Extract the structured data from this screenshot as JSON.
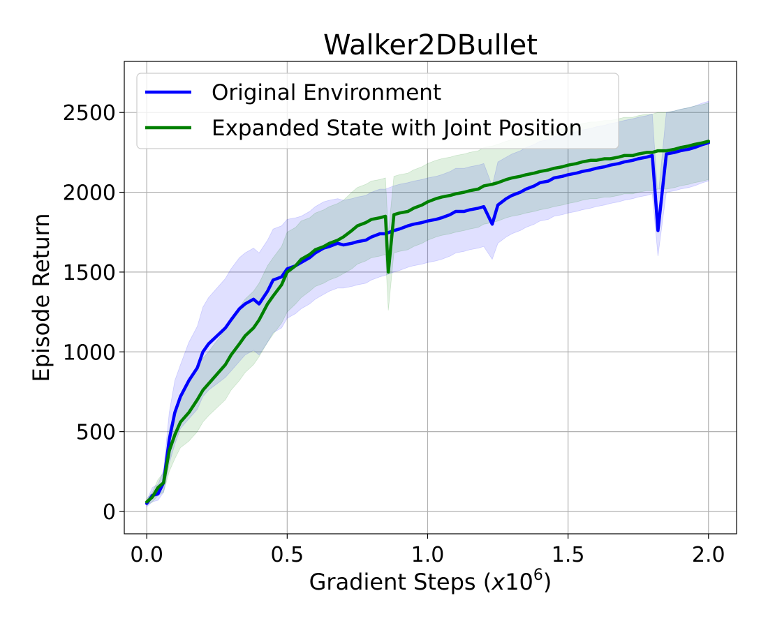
{
  "chart_data": {
    "type": "line",
    "title": "Walker2DBullet",
    "xlabel": "Gradient Steps (x10⁶)",
    "xlabel_parts": {
      "main": "Gradient Steps (",
      "var": "x",
      "base": "10",
      "exp": "6",
      "close": ")"
    },
    "ylabel": "Episode Return",
    "xlim": [
      -0.08,
      2.1
    ],
    "ylim": [
      -140,
      2820
    ],
    "xticks": [
      0.0,
      0.5,
      1.0,
      1.5,
      2.0
    ],
    "xtick_labels": [
      "0.0",
      "0.5",
      "1.0",
      "1.5",
      "2.0"
    ],
    "yticks": [
      0,
      500,
      1000,
      1500,
      2000,
      2500
    ],
    "ytick_labels": [
      "0",
      "500",
      "1000",
      "1500",
      "2000",
      "2500"
    ],
    "grid": true,
    "legend_position": "top-left",
    "series": [
      {
        "name": "Original Environment",
        "color": "#0000ff",
        "band_color": "#0000ff",
        "x": [
          0.0,
          0.02,
          0.04,
          0.06,
          0.08,
          0.1,
          0.12,
          0.15,
          0.18,
          0.2,
          0.22,
          0.25,
          0.28,
          0.3,
          0.33,
          0.35,
          0.38,
          0.4,
          0.43,
          0.45,
          0.48,
          0.5,
          0.53,
          0.55,
          0.58,
          0.6,
          0.63,
          0.65,
          0.68,
          0.7,
          0.73,
          0.75,
          0.78,
          0.8,
          0.83,
          0.85,
          0.88,
          0.9,
          0.93,
          0.95,
          0.98,
          1.0,
          1.03,
          1.05,
          1.08,
          1.1,
          1.13,
          1.15,
          1.18,
          1.2,
          1.23,
          1.25,
          1.28,
          1.3,
          1.33,
          1.35,
          1.38,
          1.4,
          1.43,
          1.45,
          1.48,
          1.5,
          1.53,
          1.55,
          1.58,
          1.6,
          1.63,
          1.65,
          1.68,
          1.7,
          1.73,
          1.75,
          1.78,
          1.8,
          1.82,
          1.85,
          1.88,
          1.9,
          1.93,
          1.95,
          1.98,
          2.0
        ],
        "y": [
          50,
          100,
          110,
          180,
          450,
          620,
          720,
          820,
          900,
          1000,
          1050,
          1100,
          1150,
          1200,
          1270,
          1300,
          1330,
          1300,
          1380,
          1450,
          1470,
          1520,
          1540,
          1560,
          1590,
          1620,
          1650,
          1660,
          1680,
          1670,
          1680,
          1690,
          1700,
          1720,
          1740,
          1740,
          1760,
          1770,
          1790,
          1800,
          1810,
          1820,
          1830,
          1840,
          1860,
          1880,
          1880,
          1890,
          1900,
          1910,
          1800,
          1920,
          1960,
          1980,
          2000,
          2020,
          2040,
          2060,
          2070,
          2090,
          2100,
          2110,
          2120,
          2130,
          2140,
          2150,
          2160,
          2170,
          2180,
          2190,
          2200,
          2210,
          2220,
          2230,
          1760,
          2240,
          2250,
          2260,
          2270,
          2280,
          2300,
          2310
        ],
        "lower": [
          30,
          60,
          70,
          120,
          300,
          420,
          520,
          580,
          640,
          720,
          760,
          800,
          840,
          880,
          940,
          980,
          1010,
          980,
          1060,
          1120,
          1150,
          1210,
          1240,
          1270,
          1300,
          1330,
          1360,
          1380,
          1400,
          1400,
          1410,
          1420,
          1430,
          1450,
          1470,
          1480,
          1500,
          1510,
          1530,
          1540,
          1550,
          1560,
          1570,
          1580,
          1600,
          1620,
          1630,
          1640,
          1650,
          1660,
          1580,
          1680,
          1720,
          1740,
          1760,
          1780,
          1800,
          1820,
          1830,
          1850,
          1860,
          1870,
          1880,
          1890,
          1900,
          1910,
          1920,
          1930,
          1940,
          1950,
          1960,
          1970,
          1980,
          1990,
          1600,
          2000,
          2010,
          2020,
          2030,
          2040,
          2060,
          2070
        ],
        "upper": [
          70,
          150,
          170,
          260,
          620,
          820,
          920,
          1060,
          1160,
          1280,
          1340,
          1400,
          1460,
          1520,
          1590,
          1620,
          1650,
          1620,
          1700,
          1770,
          1790,
          1830,
          1840,
          1850,
          1880,
          1910,
          1940,
          1950,
          1960,
          1950,
          1960,
          1970,
          1980,
          2000,
          2020,
          2020,
          2040,
          2050,
          2060,
          2070,
          2080,
          2090,
          2100,
          2110,
          2130,
          2150,
          2150,
          2160,
          2170,
          2180,
          2040,
          2190,
          2220,
          2240,
          2260,
          2280,
          2300,
          2320,
          2330,
          2350,
          2360,
          2370,
          2380,
          2390,
          2400,
          2410,
          2420,
          2430,
          2440,
          2450,
          2460,
          2470,
          2480,
          2490,
          1960,
          2500,
          2510,
          2520,
          2530,
          2540,
          2560,
          2570
        ]
      },
      {
        "name": "Expanded State with Joint Position",
        "color": "#008000",
        "band_color": "#008000",
        "x": [
          0.0,
          0.02,
          0.04,
          0.06,
          0.08,
          0.1,
          0.12,
          0.15,
          0.18,
          0.2,
          0.22,
          0.25,
          0.28,
          0.3,
          0.33,
          0.35,
          0.38,
          0.4,
          0.43,
          0.45,
          0.48,
          0.5,
          0.53,
          0.55,
          0.58,
          0.6,
          0.63,
          0.65,
          0.68,
          0.7,
          0.73,
          0.75,
          0.78,
          0.8,
          0.83,
          0.85,
          0.86,
          0.88,
          0.9,
          0.93,
          0.95,
          0.98,
          1.0,
          1.03,
          1.05,
          1.08,
          1.1,
          1.13,
          1.15,
          1.18,
          1.2,
          1.23,
          1.25,
          1.28,
          1.3,
          1.33,
          1.35,
          1.38,
          1.4,
          1.43,
          1.45,
          1.48,
          1.5,
          1.53,
          1.55,
          1.58,
          1.6,
          1.63,
          1.65,
          1.68,
          1.7,
          1.73,
          1.75,
          1.78,
          1.8,
          1.82,
          1.85,
          1.88,
          1.9,
          1.93,
          1.95,
          1.98,
          2.0
        ],
        "y": [
          60,
          90,
          150,
          180,
          380,
          480,
          560,
          620,
          700,
          760,
          800,
          860,
          920,
          980,
          1050,
          1100,
          1150,
          1200,
          1300,
          1350,
          1420,
          1500,
          1540,
          1580,
          1610,
          1640,
          1660,
          1680,
          1700,
          1720,
          1760,
          1790,
          1810,
          1830,
          1840,
          1850,
          1500,
          1860,
          1870,
          1880,
          1900,
          1920,
          1940,
          1960,
          1970,
          1980,
          1990,
          2000,
          2010,
          2020,
          2040,
          2050,
          2060,
          2080,
          2090,
          2100,
          2110,
          2120,
          2130,
          2140,
          2150,
          2160,
          2170,
          2180,
          2190,
          2200,
          2200,
          2210,
          2210,
          2220,
          2230,
          2230,
          2240,
          2250,
          2250,
          2260,
          2260,
          2270,
          2280,
          2290,
          2300,
          2310,
          2320
        ],
        "lower": [
          40,
          60,
          100,
          120,
          250,
          330,
          400,
          440,
          500,
          560,
          600,
          650,
          700,
          760,
          820,
          870,
          920,
          970,
          1060,
          1110,
          1180,
          1250,
          1300,
          1340,
          1380,
          1410,
          1430,
          1450,
          1470,
          1490,
          1520,
          1550,
          1570,
          1590,
          1600,
          1610,
          1260,
          1620,
          1630,
          1640,
          1660,
          1680,
          1700,
          1720,
          1730,
          1740,
          1750,
          1760,
          1770,
          1780,
          1800,
          1810,
          1820,
          1840,
          1850,
          1860,
          1870,
          1880,
          1890,
          1900,
          1910,
          1920,
          1930,
          1940,
          1950,
          1960,
          1960,
          1970,
          1970,
          1980,
          1990,
          1990,
          2000,
          2010,
          2010,
          2020,
          2020,
          2030,
          2040,
          2050,
          2060,
          2070,
          2080
        ],
        "upper": [
          80,
          120,
          200,
          240,
          510,
          630,
          720,
          800,
          900,
          960,
          1000,
          1070,
          1140,
          1200,
          1280,
          1330,
          1380,
          1430,
          1540,
          1590,
          1660,
          1750,
          1780,
          1820,
          1840,
          1870,
          1890,
          1910,
          1930,
          1950,
          2000,
          2030,
          2050,
          2070,
          2080,
          2090,
          1740,
          2100,
          2110,
          2120,
          2140,
          2160,
          2180,
          2200,
          2210,
          2220,
          2230,
          2240,
          2250,
          2260,
          2280,
          2290,
          2300,
          2320,
          2330,
          2340,
          2350,
          2360,
          2370,
          2380,
          2390,
          2400,
          2410,
          2420,
          2430,
          2440,
          2440,
          2450,
          2450,
          2460,
          2470,
          2470,
          2480,
          2490,
          2490,
          2500,
          2500,
          2510,
          2520,
          2530,
          2540,
          2550,
          2560
        ]
      }
    ]
  }
}
